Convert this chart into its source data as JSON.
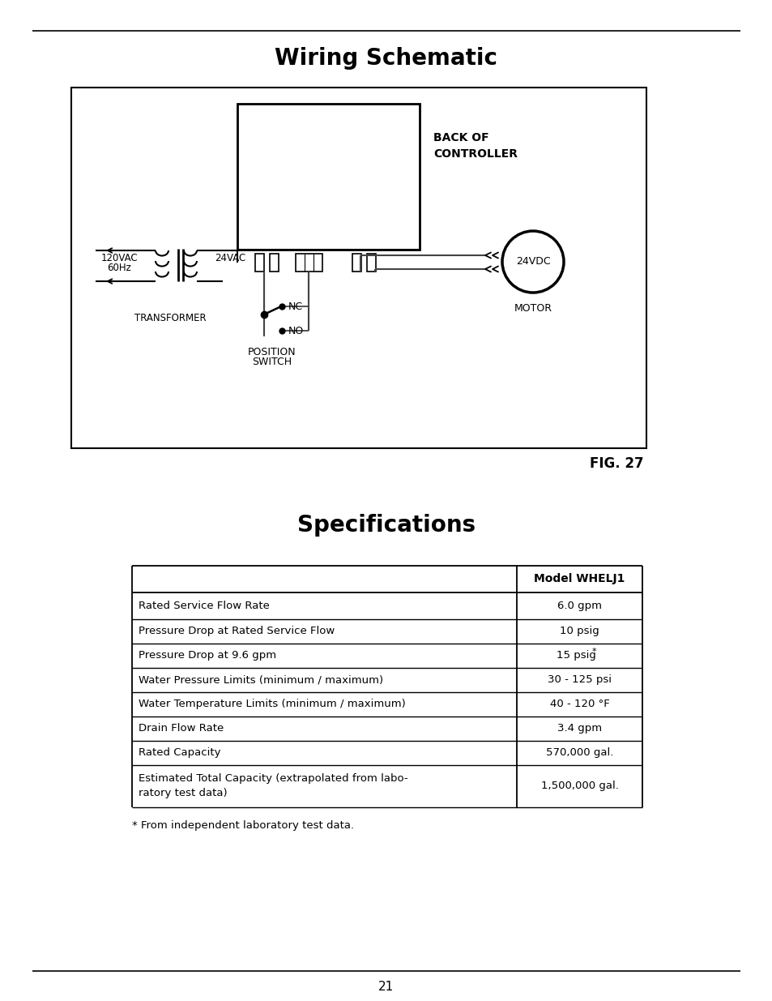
{
  "title_wiring": "Wiring Schematic",
  "title_specs": "Specifications",
  "fig_label": "FIG. 27",
  "page_number": "21",
  "footnote": "* From independent laboratory test data.",
  "table_header": "Model WHELJ1",
  "table_rows": [
    [
      "Rated Service Flow Rate",
      "6.0 gpm"
    ],
    [
      "Pressure Drop at Rated Service Flow",
      "10 psig"
    ],
    [
      "Pressure Drop at 9.6 gpm",
      "15 psig*"
    ],
    [
      "Water Pressure Limits (minimum / maximum)",
      "30 - 125 psi"
    ],
    [
      "Water Temperature Limits (minimum / maximum)",
      "40 - 120 °F"
    ],
    [
      "Drain Flow Rate",
      "3.4 gpm"
    ],
    [
      "Rated Capacity",
      "570,000 gal."
    ],
    [
      "Estimated Total Capacity (extrapolated from labo-\nratory test data)",
      "1,500,000 gal."
    ]
  ],
  "bg_color": "#ffffff",
  "text_color": "#000000"
}
